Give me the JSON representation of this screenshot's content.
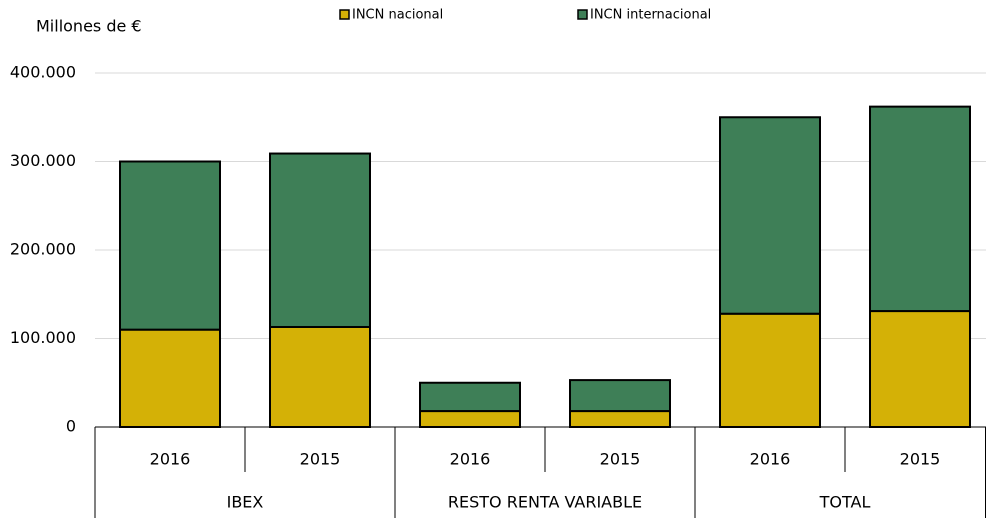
{
  "chart_data": {
    "type": "stacked_bar",
    "y_axis_label": "Millones de €",
    "categories": [
      "2016",
      "2015",
      "2016",
      "2015",
      "2016",
      "2015"
    ],
    "groups": [
      "IBEX",
      "RESTO RENTA VARIABLE",
      "TOTAL"
    ],
    "series": [
      {
        "name": "INCN nacional",
        "color": "#d4b106",
        "values": [
          110000,
          113000,
          18000,
          18000,
          128000,
          131000
        ]
      },
      {
        "name": "INCN internacional",
        "color": "#3e7f57",
        "values": [
          190000,
          196000,
          32000,
          35000,
          222000,
          231000
        ]
      }
    ],
    "ylim": [
      0,
      400000
    ],
    "yticks": [
      0,
      {
        "value": 100000,
        "label": "100.000"
      },
      {
        "value": 200000,
        "label": "200.000"
      },
      {
        "value": 300000,
        "label": "300.000"
      },
      {
        "value": 400000,
        "label": "400.000"
      }
    ],
    "grid": true,
    "legend": "top"
  }
}
